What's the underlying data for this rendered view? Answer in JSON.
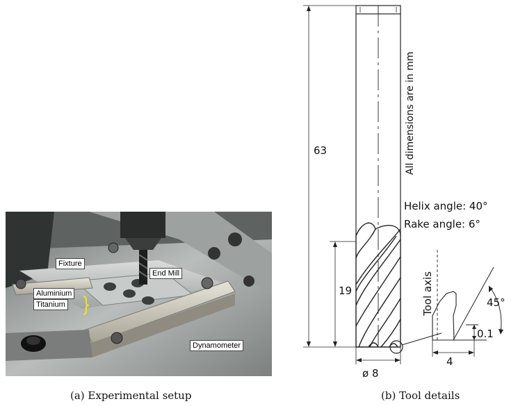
{
  "figure_a": {
    "caption": "(a)  Experimental setup",
    "labels": {
      "fixture": "Fixture",
      "end_mill": "End Mill",
      "aluminium": "Aluminium",
      "titanium": "Titanium",
      "dynamometer": "Dynamometer"
    }
  },
  "figure_b": {
    "caption": "(b)  Tool details",
    "note": "All dimensions are in mm",
    "overall_length": "63",
    "flute_length": "19",
    "diameter": "ø 8",
    "helix_angle": "Helix angle: 40°",
    "rake_angle": "Rake angle: 6°",
    "tool_axis": "Tool axis",
    "angle_45": "45°",
    "chamfer": "0.1",
    "width_4": "4"
  }
}
